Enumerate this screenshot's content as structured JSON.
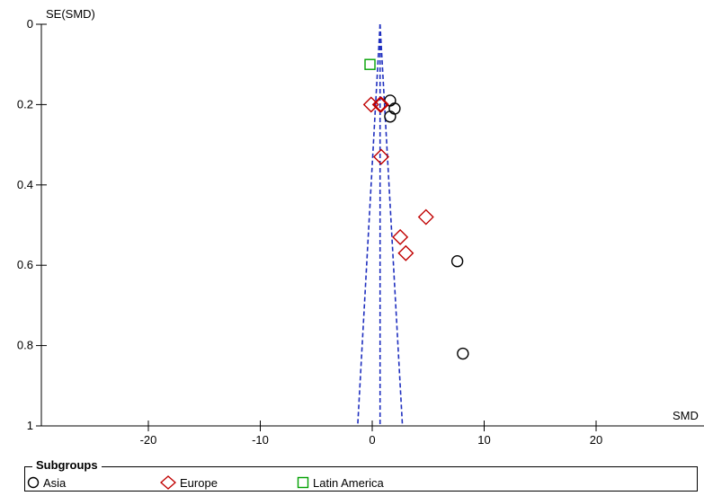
{
  "chart_data": {
    "type": "scatter",
    "title": "",
    "xlabel": "SMD",
    "ylabel": "SE(SMD)",
    "xlim": [
      -29,
      30
    ],
    "ylim": [
      0,
      1
    ],
    "y_inverted": true,
    "x_ticks": [
      "-20",
      "-10",
      "0",
      "10",
      "20"
    ],
    "y_ticks": [
      "0",
      "0.2",
      "0.4",
      "0.6",
      "0.8",
      "1"
    ],
    "funnel": {
      "center": 0.7,
      "style": "dashed",
      "color": "#1f2fbf",
      "lines_x_at_se1": [
        -1.3,
        0.7,
        2.7
      ]
    },
    "series": [
      {
        "name": "Asia",
        "marker": "circle",
        "color": "#000000",
        "points": [
          {
            "x": 1.6,
            "y": 0.19
          },
          {
            "x": 2.0,
            "y": 0.21
          },
          {
            "x": 1.6,
            "y": 0.23
          },
          {
            "x": 7.6,
            "y": 0.59
          },
          {
            "x": 8.1,
            "y": 0.82
          }
        ]
      },
      {
        "name": "Europe",
        "marker": "diamond",
        "color": "#c00000",
        "points": [
          {
            "x": -0.1,
            "y": 0.2
          },
          {
            "x": 0.7,
            "y": 0.2
          },
          {
            "x": 0.8,
            "y": 0.2
          },
          {
            "x": 0.8,
            "y": 0.33
          },
          {
            "x": 4.8,
            "y": 0.48
          },
          {
            "x": 2.5,
            "y": 0.53
          },
          {
            "x": 3.0,
            "y": 0.57
          }
        ]
      },
      {
        "name": "Latin America",
        "marker": "square",
        "color": "#00a000",
        "points": [
          {
            "x": -0.2,
            "y": 0.1
          }
        ]
      }
    ],
    "legend": {
      "title": "Subgroups",
      "placement": "bottom"
    }
  }
}
